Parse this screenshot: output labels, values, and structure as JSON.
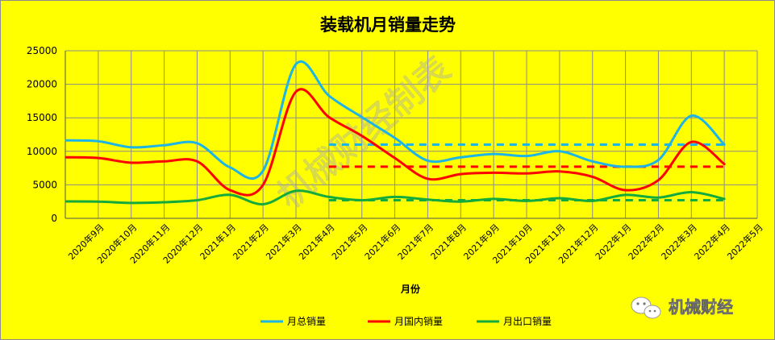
{
  "chart_data": {
    "type": "line",
    "title": "装载机月销量走势",
    "xlabel": "月份",
    "ylabel": "",
    "ylim": [
      0,
      25000
    ],
    "yticks": [
      0,
      5000,
      10000,
      15000,
      20000,
      25000
    ],
    "categories": [
      "2020年9月",
      "2020年10月",
      "2020年11月",
      "2020年12月",
      "2021年1月",
      "2021年2月",
      "2021年3月",
      "2021年4月",
      "2021年5月",
      "2021年6月",
      "2021年7月",
      "2021年8月",
      "2021年9月",
      "2021年10月",
      "2021年11月",
      "2021年12月",
      "2022年1月",
      "2022年2月",
      "2022年3月",
      "2022年4月",
      "2022年5月"
    ],
    "grid": true,
    "legend_position": "bottom",
    "series": [
      {
        "name": "月总销量",
        "color": "#1eb4e6",
        "values": [
          11500,
          10600,
          10900,
          11200,
          7600,
          7100,
          23000,
          18300,
          15100,
          12000,
          8600,
          9100,
          9600,
          9300,
          10000,
          8500,
          7700,
          8700,
          15300,
          11000,
          null
        ]
      },
      {
        "name": "月国内销量",
        "color": "#ff0000",
        "values": [
          9000,
          8300,
          8500,
          8500,
          4200,
          5000,
          18900,
          15100,
          12300,
          9000,
          5900,
          6600,
          6800,
          6700,
          7000,
          6200,
          4200,
          5700,
          11400,
          8100,
          null
        ]
      },
      {
        "name": "月出口销量",
        "color": "#14aa3c",
        "values": [
          2500,
          2300,
          2400,
          2700,
          3500,
          2100,
          4100,
          3200,
          2700,
          3200,
          2800,
          2500,
          2900,
          2600,
          3000,
          2600,
          3500,
          3100,
          3900,
          2900,
          null
        ]
      }
    ],
    "reference_lines": [
      {
        "series": "月总销量",
        "color": "#1eb4e6",
        "y": 11000,
        "x_start": "2021年4月",
        "x_end": "2022年4月"
      },
      {
        "series": "月国内销量",
        "color": "#ff0000",
        "y": 7700,
        "x_start": "2021年4月",
        "x_end": "2022年4月"
      },
      {
        "series": "月出口销量",
        "color": "#14aa3c",
        "y": 2700,
        "x_start": "2021年4月",
        "x_end": "2022年4月"
      }
    ]
  },
  "watermark": "机械财经制表",
  "brand": {
    "name": "机械财经",
    "icon": "wechat-icon"
  }
}
